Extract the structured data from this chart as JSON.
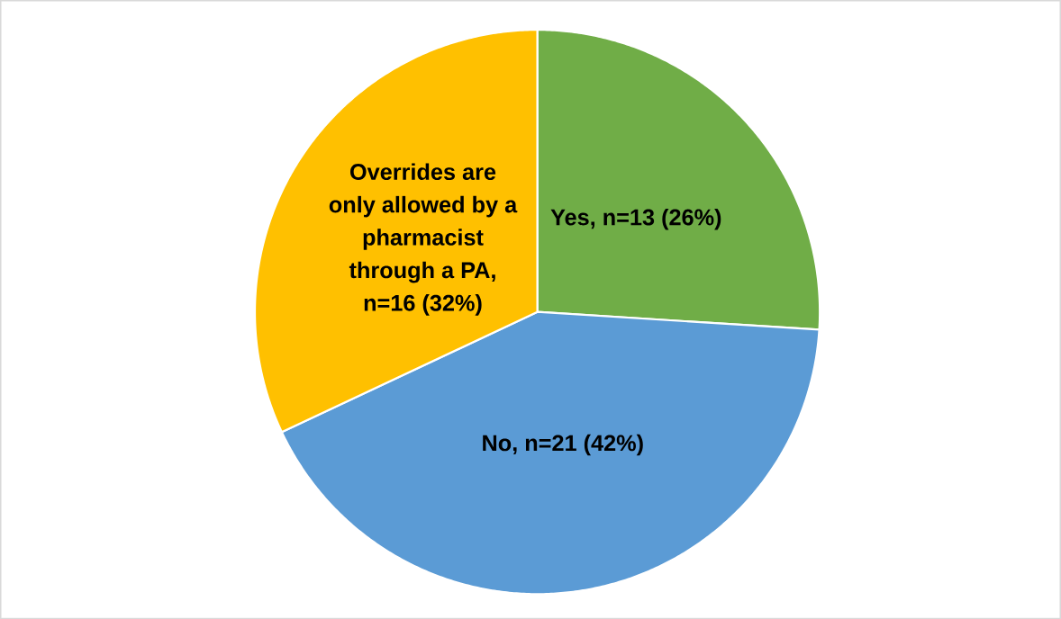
{
  "chart_data": {
    "type": "pie",
    "categories": [
      "Yes, n=13 (26%)",
      "No, n=21 (42%)",
      "Overrides are only allowed by a pharmacist through a PA, n=16 (32%)"
    ],
    "values": [
      13,
      21,
      16
    ],
    "colors": [
      "#70ad47",
      "#5b9bd5",
      "#ffc000"
    ]
  }
}
